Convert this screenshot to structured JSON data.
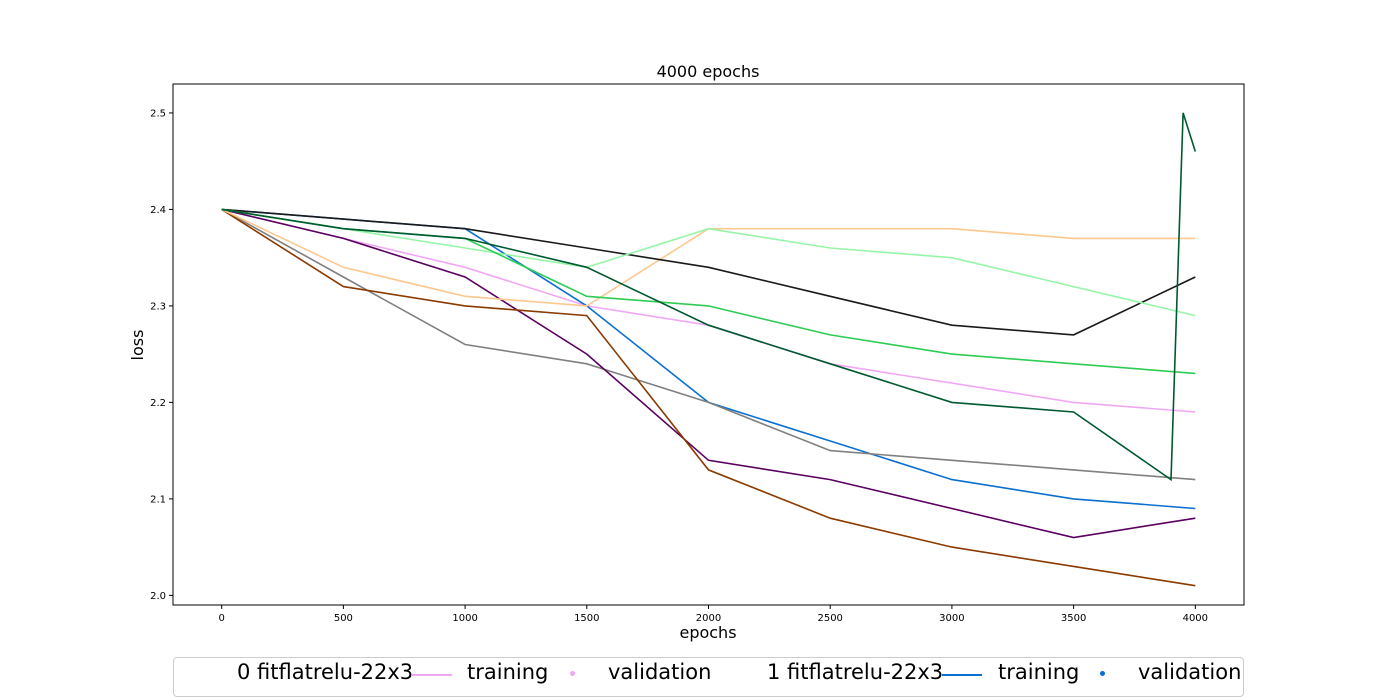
{
  "chart_data": {
    "type": "line",
    "title": "4000 epochs",
    "xlabel": "epochs",
    "ylabel": "loss",
    "xlim": [
      -200,
      4200
    ],
    "ylim": [
      1.99,
      2.53
    ],
    "xticks": [
      0,
      500,
      1000,
      1500,
      2000,
      2500,
      3000,
      3500,
      4000
    ],
    "yticks": [
      2.0,
      2.1,
      2.2,
      2.3,
      2.4,
      2.5
    ],
    "xtick_labels": [
      "0",
      "500",
      "1000",
      "1500",
      "2000",
      "2500",
      "3000",
      "3500",
      "4000"
    ],
    "ytick_labels": [
      "2.0",
      "2.1",
      "2.2",
      "2.3",
      "2.4",
      "2.5"
    ],
    "grid": false,
    "legend_position": "bottom",
    "series": [
      {
        "color": "#f0a8f5",
        "x": [
          0,
          500,
          1000,
          1500,
          2000,
          2500,
          3000,
          3500,
          4000
        ],
        "values": [
          2.4,
          2.37,
          2.34,
          2.3,
          2.28,
          2.24,
          2.22,
          2.2,
          2.19
        ]
      },
      {
        "color": "#0b6fd0",
        "x": [
          0,
          500,
          1000,
          1500,
          2000,
          2500,
          3000,
          3500,
          4000
        ],
        "values": [
          2.4,
          2.39,
          2.38,
          2.3,
          2.2,
          2.16,
          2.12,
          2.1,
          2.09
        ]
      },
      {
        "color": "#808080",
        "x": [
          0,
          500,
          1000,
          1500,
          2000,
          2500,
          3000,
          3500,
          4000
        ],
        "values": [
          2.4,
          2.33,
          2.26,
          2.24,
          2.2,
          2.15,
          2.14,
          2.13,
          2.12
        ]
      },
      {
        "color": "#5a0060",
        "x": [
          0,
          500,
          1000,
          1500,
          2000,
          2500,
          3000,
          3500,
          4000
        ],
        "values": [
          2.4,
          2.37,
          2.33,
          2.25,
          2.14,
          2.12,
          2.09,
          2.06,
          2.08
        ]
      },
      {
        "color": "#8b3a00",
        "x": [
          0,
          500,
          1000,
          1500,
          2000,
          2500,
          3000,
          3500,
          4000
        ],
        "values": [
          2.4,
          2.32,
          2.3,
          2.29,
          2.13,
          2.08,
          2.05,
          2.03,
          2.01
        ]
      },
      {
        "color": "#fcc890",
        "x": [
          0,
          500,
          1000,
          1500,
          2000,
          2500,
          3000,
          3500,
          4000
        ],
        "values": [
          2.4,
          2.34,
          2.31,
          2.3,
          2.38,
          2.38,
          2.38,
          2.37,
          2.37
        ]
      },
      {
        "color": "#1a1a1a",
        "x": [
          0,
          500,
          1000,
          1500,
          2000,
          2500,
          3000,
          3500,
          4000
        ],
        "values": [
          2.4,
          2.39,
          2.38,
          2.36,
          2.34,
          2.31,
          2.28,
          2.27,
          2.33
        ]
      },
      {
        "color": "#98f5a8",
        "x": [
          0,
          500,
          1000,
          1500,
          2000,
          2500,
          3000,
          3500,
          4000
        ],
        "values": [
          2.4,
          2.38,
          2.36,
          2.34,
          2.38,
          2.36,
          2.35,
          2.32,
          2.29
        ]
      },
      {
        "color": "#2ecc55",
        "x": [
          0,
          500,
          1000,
          1500,
          2000,
          2500,
          3000,
          3500,
          4000
        ],
        "values": [
          2.4,
          2.38,
          2.37,
          2.31,
          2.3,
          2.27,
          2.25,
          2.24,
          2.23
        ]
      },
      {
        "color": "#005a30",
        "x": [
          0,
          500,
          1000,
          1500,
          2000,
          2500,
          3000,
          3500,
          3900,
          3950,
          4000
        ],
        "values": [
          2.4,
          2.38,
          2.37,
          2.34,
          2.28,
          2.24,
          2.2,
          2.19,
          2.12,
          2.5,
          2.46
        ]
      }
    ],
    "legend": {
      "entries": [
        {
          "label": "0 fitflatrelu-22x3",
          "training_label": "training",
          "validation_label": "validation",
          "color": "#f0a8f5"
        },
        {
          "label": "1 fitflatrelu-22x3",
          "training_label": "training",
          "validation_label": "validation",
          "color": "#0b6fd0"
        }
      ]
    }
  }
}
